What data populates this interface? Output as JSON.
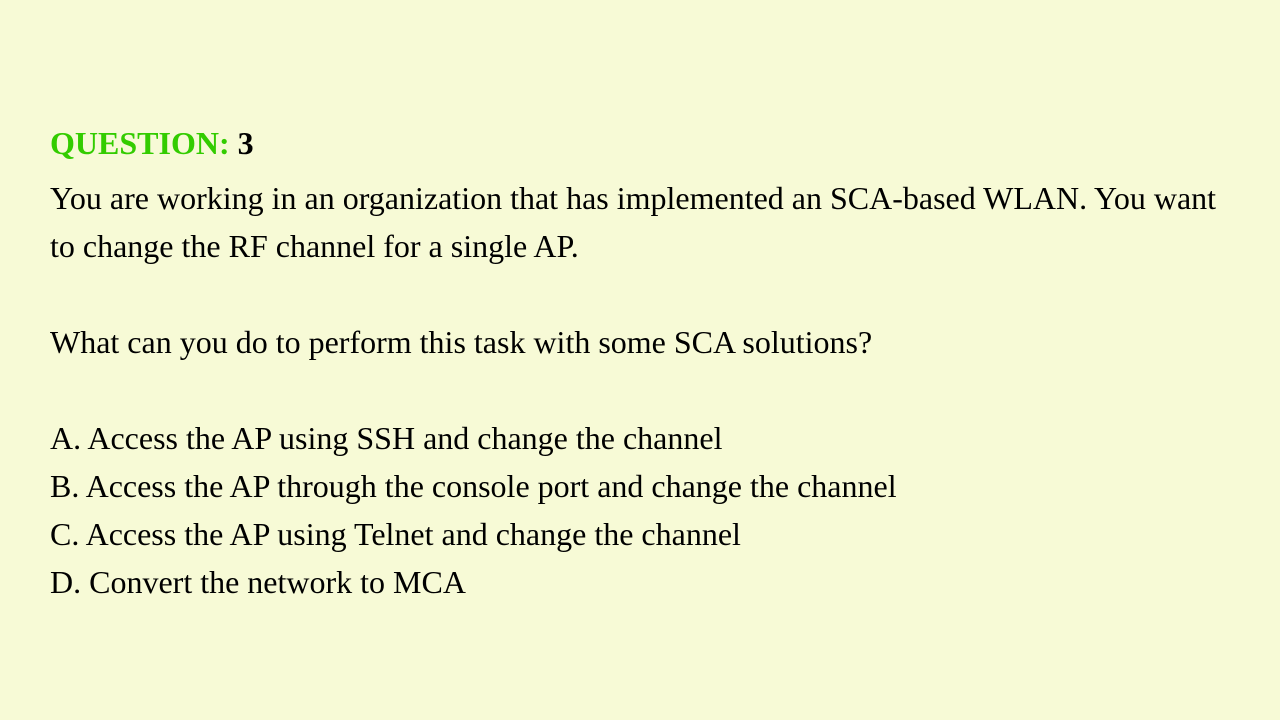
{
  "header": {
    "label": "QUESTION:",
    "number": "3"
  },
  "context": "You are working in an organization that has implemented an SCA-based WLAN. You want to change the RF channel for a single AP.",
  "prompt": "What can you do to perform this task with some SCA solutions?",
  "options": {
    "a": "A. Access the AP using SSH and change the channel",
    "b": "B. Access the AP through the console port and change the channel",
    "c": "C. Access the AP using Telnet and change the channel",
    "d": "D. Convert the network to MCA"
  },
  "colors": {
    "background": "#f7fad6",
    "label": "#33cc00",
    "text": "#000000"
  },
  "typography": {
    "font_family": "Times New Roman",
    "base_fontsize": 32,
    "header_weight": "bold"
  }
}
